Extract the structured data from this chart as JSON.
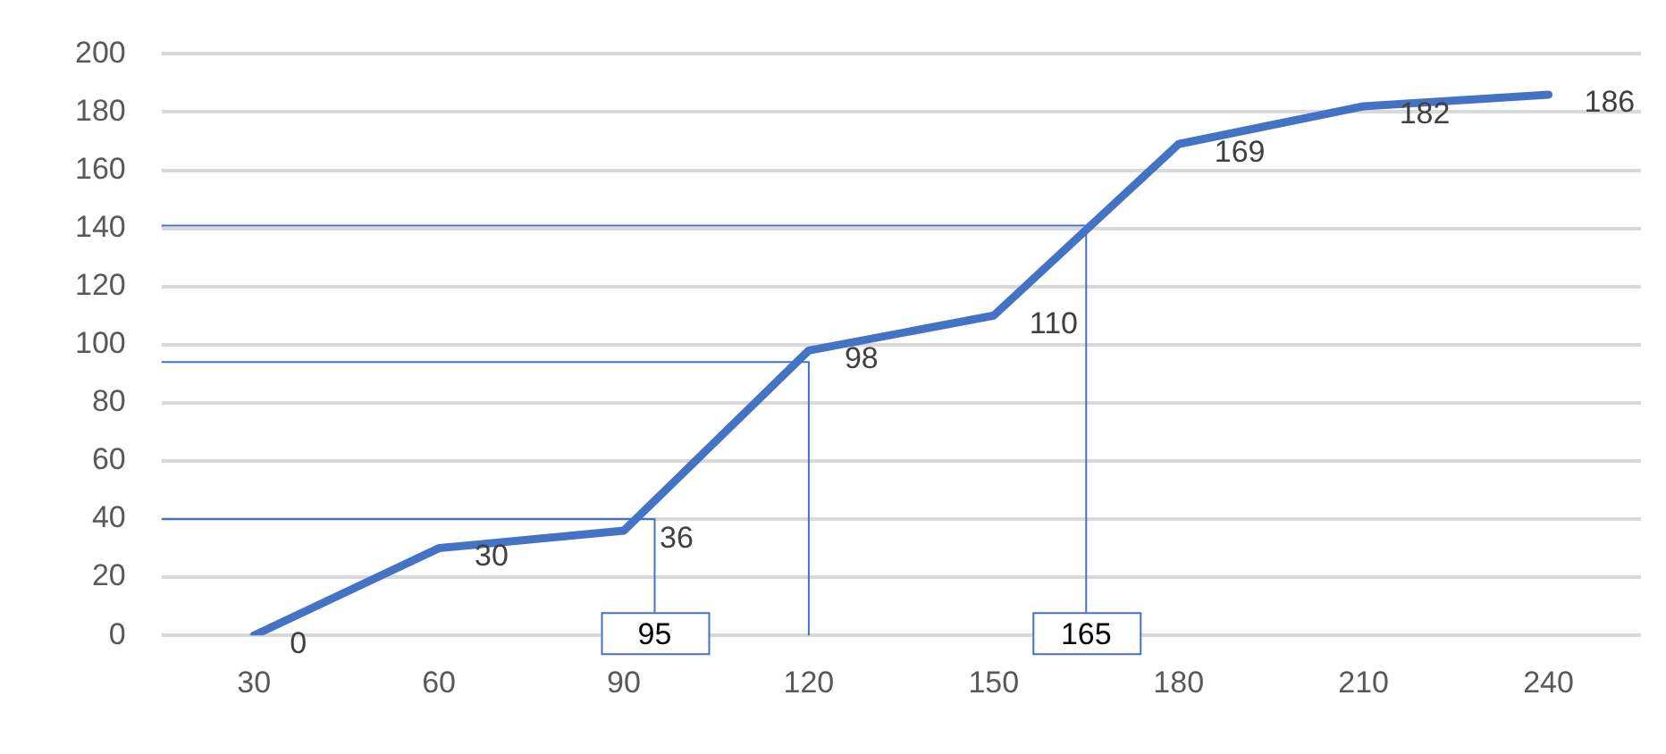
{
  "chart_data": {
    "type": "line",
    "x": [
      30,
      60,
      90,
      120,
      150,
      180,
      210,
      240
    ],
    "series": [
      {
        "color": "#4472c4",
        "values": [
          0,
          30,
          36,
          98,
          110,
          169,
          182,
          186
        ],
        "value_labels": [
          "0",
          "30",
          "36",
          "98",
          "110",
          "169",
          "182",
          "186"
        ]
      },
      {
        "type": "line",
        "color": "#4472c4",
        "x": [
          15,
          95,
          95
        ],
        "values": [
          40,
          40,
          8
        ]
      },
      {
        "type": "line",
        "color": "#4472c4",
        "x": [
          15,
          120,
          120
        ],
        "values": [
          94,
          94,
          0
        ]
      },
      {
        "type": "line",
        "color": "#4472c4",
        "x": [
          15,
          165,
          165
        ],
        "values": [
          141,
          141,
          8
        ]
      }
    ],
    "xlim": [
      15,
      255
    ],
    "xticks": [
      30,
      60,
      90,
      120,
      150,
      180,
      210,
      240
    ],
    "ylim": [
      0,
      200
    ],
    "yticks": [
      0,
      20,
      40,
      60,
      80,
      100,
      120,
      140,
      160,
      180,
      200
    ],
    "grid": "y",
    "legend": false,
    "marker": "none",
    "line_style": "solid",
    "annotations": [
      {
        "text": "95",
        "x": 95,
        "y": 8
      },
      {
        "text": "165",
        "x": 165,
        "y": 8
      }
    ]
  }
}
